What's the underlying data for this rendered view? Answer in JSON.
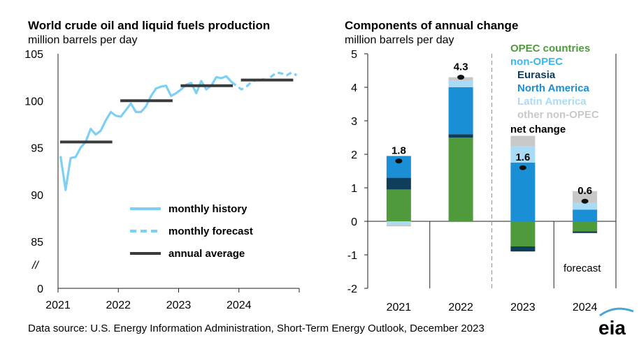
{
  "source": "Data source: U.S. Energy Information Administration, Short-Term Energy Outlook, December 2023",
  "logo_text": "eia",
  "colors": {
    "monthly": "#7ed0f3",
    "annual": "#3a3a3a",
    "opec": "#4f9b3c",
    "eurasia": "#0f3e5b",
    "north_america": "#1b8fd6",
    "latin_america": "#a9dcf4",
    "other_non_opec": "#c8c8c8",
    "net_change": "#111111",
    "nonopec_label": "#38b9ee",
    "forecast_divider": "#9a9a9a"
  },
  "chart_data": [
    {
      "type": "line",
      "title": "World crude oil and liquid fuels production",
      "subtitle": "million barrels per day",
      "xlabel": "",
      "ylabel": "",
      "x_tick_labels": [
        "2021",
        "2022",
        "2023",
        "2024"
      ],
      "y_tick_labels": [
        "0",
        "//",
        "85",
        "90",
        "95",
        "100",
        "105"
      ],
      "ylim": [
        85,
        105
      ],
      "axis_break": true,
      "grid": false,
      "legend_placement": "bottom-right",
      "legend": [
        "monthly history",
        "monthly forecast",
        "annual average"
      ],
      "series": [
        {
          "name": "monthly history",
          "style": "solid",
          "x": [
            "2021-01",
            "2021-02",
            "2021-03",
            "2021-04",
            "2021-05",
            "2021-06",
            "2021-07",
            "2021-08",
            "2021-09",
            "2021-10",
            "2021-11",
            "2021-12",
            "2022-01",
            "2022-02",
            "2022-03",
            "2022-04",
            "2022-05",
            "2022-06",
            "2022-07",
            "2022-08",
            "2022-09",
            "2022-10",
            "2022-11",
            "2022-12",
            "2023-01",
            "2023-02",
            "2023-03",
            "2023-04",
            "2023-05",
            "2023-06",
            "2023-07",
            "2023-08",
            "2023-09",
            "2023-10",
            "2023-11"
          ],
          "values": [
            94.1,
            90.5,
            93.9,
            94.0,
            95.0,
            95.6,
            97.0,
            96.4,
            96.8,
            97.9,
            98.8,
            98.4,
            98.3,
            99.0,
            99.7,
            98.8,
            98.8,
            99.4,
            100.5,
            101.3,
            101.5,
            101.6,
            100.5,
            100.8,
            101.2,
            101.7,
            101.9,
            100.8,
            102.1,
            101.2,
            101.6,
            102.5,
            102.4,
            102.6,
            102.0
          ]
        },
        {
          "name": "monthly forecast",
          "style": "dashed",
          "x": [
            "2023-11",
            "2023-12",
            "2024-01",
            "2024-02",
            "2024-03",
            "2024-04",
            "2024-05",
            "2024-06",
            "2024-07",
            "2024-08",
            "2024-09",
            "2024-10",
            "2024-11",
            "2024-12"
          ],
          "values": [
            102.0,
            101.6,
            101.2,
            101.5,
            102.0,
            102.2,
            102.3,
            102.2,
            102.6,
            103.0,
            102.9,
            102.7,
            103.0,
            102.7
          ]
        }
      ],
      "annual_average": [
        {
          "year": "2021",
          "value": 95.6
        },
        {
          "year": "2022",
          "value": 100.0
        },
        {
          "year": "2023",
          "value": 101.6
        },
        {
          "year": "2024",
          "value": 102.2
        }
      ]
    },
    {
      "type": "bar",
      "stacked": true,
      "title": "Components of annual change",
      "subtitle": "million barrels per day",
      "categories": [
        "2021",
        "2022",
        "2023",
        "2024"
      ],
      "ylim": [
        -2,
        5
      ],
      "y_tick_labels": [
        "-2",
        "-1",
        "0",
        "1",
        "2",
        "3",
        "4",
        "5"
      ],
      "legend_placement": "top-right",
      "legend_header": "non-OPEC",
      "series": [
        {
          "name": "OPEC countries",
          "key": "opec",
          "values": [
            0.95,
            2.5,
            -0.75,
            -0.3
          ]
        },
        {
          "name": "Eurasia",
          "key": "eurasia",
          "values": [
            0.35,
            0.1,
            -0.15,
            -0.05
          ]
        },
        {
          "name": "North America",
          "key": "north_america",
          "values": [
            0.65,
            1.4,
            1.75,
            0.35
          ]
        },
        {
          "name": "Latin America",
          "key": "latin_america",
          "values": [
            -0.1,
            0.2,
            0.5,
            0.2
          ]
        },
        {
          "name": "other non-OPEC",
          "key": "other_non_opec",
          "values": [
            -0.05,
            0.1,
            0.3,
            0.35
          ]
        }
      ],
      "net_change": {
        "name": "net change",
        "values": [
          1.8,
          4.3,
          1.6,
          0.6
        ],
        "labels": [
          "1.8",
          "4.3",
          "1.6",
          "0.6"
        ]
      },
      "forecast_start_category": "2023",
      "annotation": "forecast"
    }
  ]
}
